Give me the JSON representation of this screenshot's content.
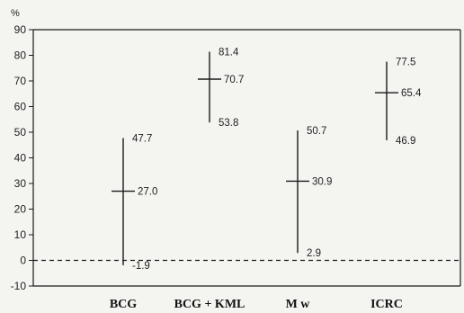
{
  "chart_data": {
    "type": "errorbar",
    "title": "",
    "xlabel": "",
    "ylabel": "%",
    "ylim": [
      -10,
      90
    ],
    "yticks": [
      -10,
      0,
      10,
      20,
      30,
      40,
      50,
      60,
      70,
      80,
      90
    ],
    "reference_line": {
      "y": 0,
      "style": "dashed"
    },
    "categories": [
      "BCG",
      "BCG + KML",
      "M w",
      "ICRC"
    ],
    "series": [
      {
        "points": [
          {
            "category": "BCG",
            "estimate": 27.0,
            "lower": -1.9,
            "upper": 47.7,
            "estimate_label": "27.0",
            "lower_label": "-1.9",
            "upper_label": "47.7"
          },
          {
            "category": "BCG + KML",
            "estimate": 70.7,
            "lower": 53.8,
            "upper": 81.4,
            "estimate_label": "70.7",
            "lower_label": "53.8",
            "upper_label": "81.4"
          },
          {
            "category": "M w",
            "estimate": 30.9,
            "lower": 2.9,
            "upper": 50.7,
            "estimate_label": "30.9",
            "lower_label": "2.9",
            "upper_label": "50.7"
          },
          {
            "category": "ICRC",
            "estimate": 65.4,
            "lower": 46.9,
            "upper": 77.5,
            "estimate_label": "65.4",
            "lower_label": "46.9",
            "upper_label": "77.5"
          }
        ]
      }
    ],
    "grid": false,
    "colors": {
      "line": "#1a1a1a",
      "background": "#f4f4f1"
    }
  }
}
